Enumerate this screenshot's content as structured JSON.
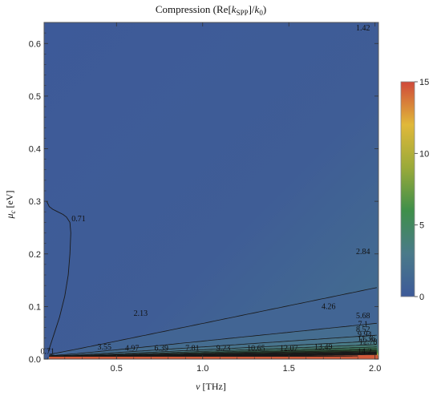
{
  "chart_data": {
    "type": "heatmap",
    "subtype": "contour",
    "title_parts": [
      "Compression (Re[",
      "k",
      "SPP",
      "]/",
      "k",
      "0",
      ")"
    ],
    "xlabel_parts": [
      "ν",
      " [THz]"
    ],
    "ylabel_parts": [
      "μ",
      "c",
      " [eV]"
    ],
    "xlim": [
      0.08,
      2.02
    ],
    "ylim": [
      0.0,
      0.64
    ],
    "x_ticks": [
      0.5,
      1.0,
      1.5,
      2.0
    ],
    "x_tick_labels": [
      "0.5",
      "1.0",
      "1.5",
      "2.0"
    ],
    "y_ticks": [
      0.0,
      0.1,
      0.2,
      0.3,
      0.4,
      0.5,
      0.6
    ],
    "y_tick_labels": [
      "0.0",
      "0.1",
      "0.2",
      "0.3",
      "0.4",
      "0.5",
      "0.6"
    ],
    "colorbar": {
      "range": [
        0,
        15
      ],
      "ticks": [
        0,
        5,
        10,
        15
      ],
      "tick_labels": [
        "0",
        "5",
        "10",
        "15"
      ],
      "colors": [
        "#3d5a99",
        "#4a7a8a",
        "#3f8f4a",
        "#9aaa3a",
        "#e0b83a",
        "#d0493a"
      ]
    },
    "contour_levels": [
      0.71,
      1.42,
      2.13,
      2.84,
      3.55,
      4.26,
      4.97,
      5.68,
      6.39,
      7.1,
      7.81,
      8.52,
      9.23,
      9.94,
      10.65,
      11.36,
      12.07,
      12.78,
      13.49,
      14.2
    ],
    "contour_labels": [
      {
        "text": "1.42",
        "x": 1.93,
        "y": 0.625
      },
      {
        "text": "0.71",
        "x": 0.28,
        "y": 0.262
      },
      {
        "text": "2.84",
        "x": 1.93,
        "y": 0.2
      },
      {
        "text": "2.13",
        "x": 0.64,
        "y": 0.082
      },
      {
        "text": "4.26",
        "x": 1.73,
        "y": 0.095
      },
      {
        "text": "5.68",
        "x": 1.93,
        "y": 0.078
      },
      {
        "text": "7.1",
        "x": 1.93,
        "y": 0.062
      },
      {
        "text": "8.52",
        "x": 1.93,
        "y": 0.052
      },
      {
        "text": "9.94",
        "x": 1.94,
        "y": 0.042
      },
      {
        "text": "11.36",
        "x": 1.95,
        "y": 0.034
      },
      {
        "text": "12.78",
        "x": 1.96,
        "y": 0.028
      },
      {
        "text": "3.55",
        "x": 0.43,
        "y": 0.018
      },
      {
        "text": "4.97",
        "x": 0.59,
        "y": 0.016
      },
      {
        "text": "6.39",
        "x": 0.76,
        "y": 0.016
      },
      {
        "text": "7.81",
        "x": 0.94,
        "y": 0.016
      },
      {
        "text": "9.23",
        "x": 1.12,
        "y": 0.016
      },
      {
        "text": "10.65",
        "x": 1.31,
        "y": 0.016
      },
      {
        "text": "12.07",
        "x": 1.5,
        "y": 0.016
      },
      {
        "text": "13.49",
        "x": 1.7,
        "y": 0.018
      },
      {
        "text": "14.2",
        "x": 1.94,
        "y": 0.01
      },
      {
        "text": "0.71",
        "x": 0.1,
        "y": 0.01
      }
    ],
    "grid": false,
    "legend": "colorbar-right"
  }
}
